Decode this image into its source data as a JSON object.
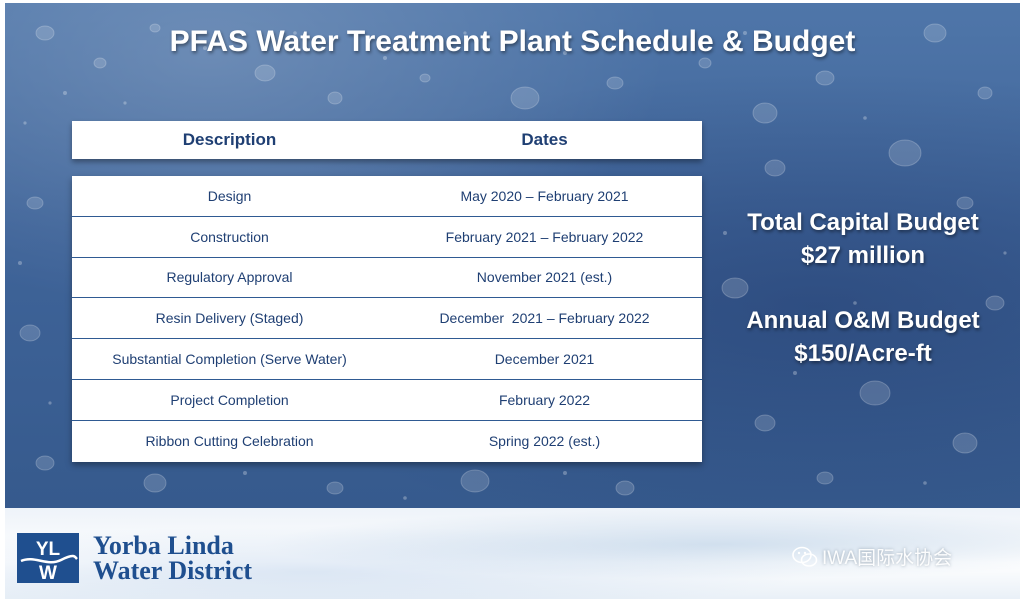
{
  "slide": {
    "title": "PFAS Water Treatment Plant Schedule & Budget"
  },
  "table": {
    "headers": [
      "Description",
      "Dates"
    ],
    "rows": [
      [
        "Design",
        "May 2020 – February 2021"
      ],
      [
        "Construction",
        "February 2021 – February 2022"
      ],
      [
        "Regulatory Approval",
        "November 2021 (est.)"
      ],
      [
        "Resin Delivery (Staged)",
        "December  2021 – February 2022"
      ],
      [
        "Substantial Completion (Serve Water)",
        "December 2021"
      ],
      [
        "Project Completion",
        "February 2022"
      ],
      [
        "Ribbon Cutting Celebration",
        "Spring 2022 (est.)"
      ]
    ]
  },
  "budget": {
    "capital_label": "Total Capital Budget",
    "capital_value": "$27 million",
    "om_label": "Annual O&M Budget",
    "om_value": "$150/Acre-ft"
  },
  "logo": {
    "mark_letters": "YLW",
    "line1": "Yorba Linda",
    "line2": "Water District"
  },
  "watermark": {
    "text": "IWA国际水协会",
    "icon": "wechat-icon"
  },
  "colors": {
    "background_blue": "#3f6499",
    "text_navy": "#1f3f73",
    "logo_blue": "#1f4f8f"
  }
}
